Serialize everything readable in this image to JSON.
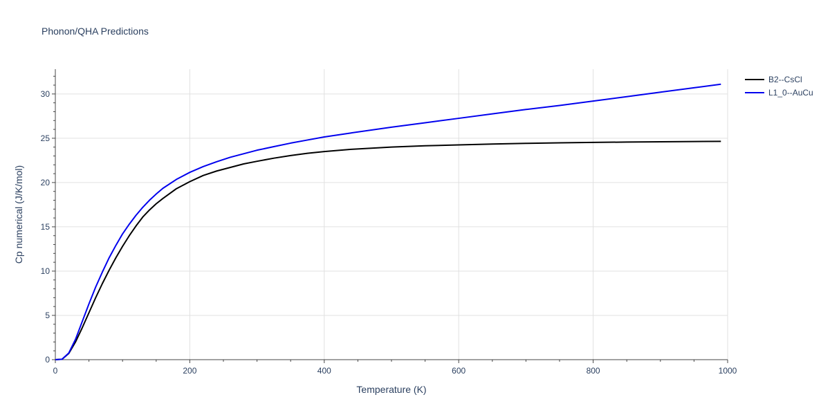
{
  "chart_data": {
    "type": "line",
    "title": "Phonon/QHA Predictions",
    "xlabel": "Temperature (K)",
    "ylabel": "Cp numerical (J/K/mol)",
    "xlim": [
      0,
      1000
    ],
    "ylim": [
      0,
      32.8
    ],
    "xticks": [
      0,
      200,
      400,
      600,
      800,
      1000
    ],
    "yticks": [
      0,
      5,
      10,
      15,
      20,
      25,
      30
    ],
    "grid": true,
    "legend_position": "top-right",
    "series": [
      {
        "name": "B2--CsCl",
        "color": "#000000",
        "x": [
          0,
          10,
          20,
          30,
          40,
          50,
          60,
          70,
          80,
          90,
          100,
          110,
          120,
          130,
          140,
          150,
          160,
          180,
          200,
          220,
          240,
          260,
          280,
          300,
          325,
          350,
          375,
          400,
          440,
          500,
          550,
          600,
          650,
          700,
          750,
          800,
          850,
          900,
          950,
          990
        ],
        "y": [
          0,
          0.05,
          0.7,
          2.0,
          3.6,
          5.3,
          7.0,
          8.6,
          10.1,
          11.5,
          12.8,
          14.0,
          15.1,
          16.1,
          16.9,
          17.6,
          18.2,
          19.3,
          20.1,
          20.8,
          21.3,
          21.7,
          22.1,
          22.4,
          22.75,
          23.05,
          23.3,
          23.5,
          23.75,
          24.0,
          24.15,
          24.25,
          24.35,
          24.42,
          24.48,
          24.53,
          24.57,
          24.6,
          24.63,
          24.65
        ]
      },
      {
        "name": "L1_0--AuCu",
        "color": "#0000ee",
        "x": [
          0,
          10,
          20,
          30,
          40,
          50,
          60,
          70,
          80,
          90,
          100,
          110,
          120,
          130,
          140,
          150,
          160,
          180,
          200,
          220,
          240,
          260,
          280,
          300,
          325,
          350,
          375,
          400,
          440,
          500,
          550,
          600,
          650,
          700,
          750,
          800,
          850,
          900,
          950,
          990
        ],
        "y": [
          0,
          0.05,
          0.75,
          2.3,
          4.3,
          6.3,
          8.2,
          9.9,
          11.5,
          12.9,
          14.2,
          15.3,
          16.3,
          17.2,
          18.0,
          18.7,
          19.35,
          20.35,
          21.15,
          21.8,
          22.35,
          22.85,
          23.25,
          23.65,
          24.05,
          24.45,
          24.8,
          25.15,
          25.6,
          26.25,
          26.75,
          27.25,
          27.75,
          28.25,
          28.7,
          29.2,
          29.7,
          30.2,
          30.7,
          31.1
        ]
      }
    ]
  }
}
